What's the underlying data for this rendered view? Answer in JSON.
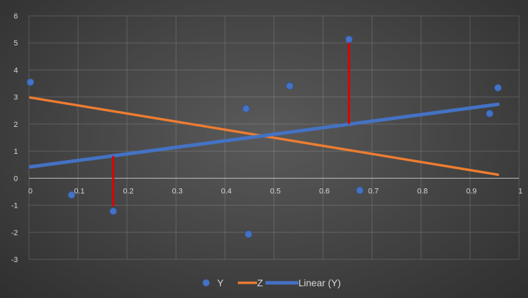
{
  "chart_data": {
    "type": "scatter",
    "title": "",
    "xlabel": "",
    "ylabel": "",
    "xlim": [
      0,
      1
    ],
    "ylim": [
      -3,
      6
    ],
    "x_ticks": [
      "0",
      "0.1",
      "0.2",
      "0.3",
      "0.4",
      "0.5",
      "0.6",
      "0.7",
      "0.8",
      "0.9",
      "1"
    ],
    "y_ticks": [
      "6",
      "5",
      "4",
      "3",
      "2",
      "1",
      "0",
      "-1",
      "-2",
      "-3"
    ],
    "grid": true,
    "legend_position": "bottom",
    "series": [
      {
        "name": "Y",
        "type": "scatter",
        "color": "#4472c4",
        "points": [
          {
            "x": 0.003,
            "y": 3.55
          },
          {
            "x": 0.087,
            "y": -0.62
          },
          {
            "x": 0.172,
            "y": -1.22
          },
          {
            "x": 0.443,
            "y": 2.57
          },
          {
            "x": 0.448,
            "y": -2.07
          },
          {
            "x": 0.532,
            "y": 3.41
          },
          {
            "x": 0.653,
            "y": 5.13
          },
          {
            "x": 0.675,
            "y": -0.45
          },
          {
            "x": 0.94,
            "y": 2.39
          },
          {
            "x": 0.957,
            "y": 3.34
          }
        ]
      },
      {
        "name": "Z",
        "type": "line",
        "color": "#ed7d31",
        "points": [
          {
            "x": 0.003,
            "y": 2.98
          },
          {
            "x": 0.957,
            "y": 0.13
          }
        ]
      },
      {
        "name": "Linear (Y)",
        "type": "trendline",
        "color": "#4472c4",
        "points": [
          {
            "x": 0.003,
            "y": 0.42
          },
          {
            "x": 0.957,
            "y": 2.73
          }
        ]
      }
    ],
    "annotations": [
      {
        "type": "residual-line",
        "color": "#e00000",
        "x": 0.172,
        "y1": 0.82,
        "y2": -1.05
      },
      {
        "type": "residual-line",
        "color": "#e00000",
        "x": 0.653,
        "y1": 5.02,
        "y2": 2.0
      }
    ]
  }
}
